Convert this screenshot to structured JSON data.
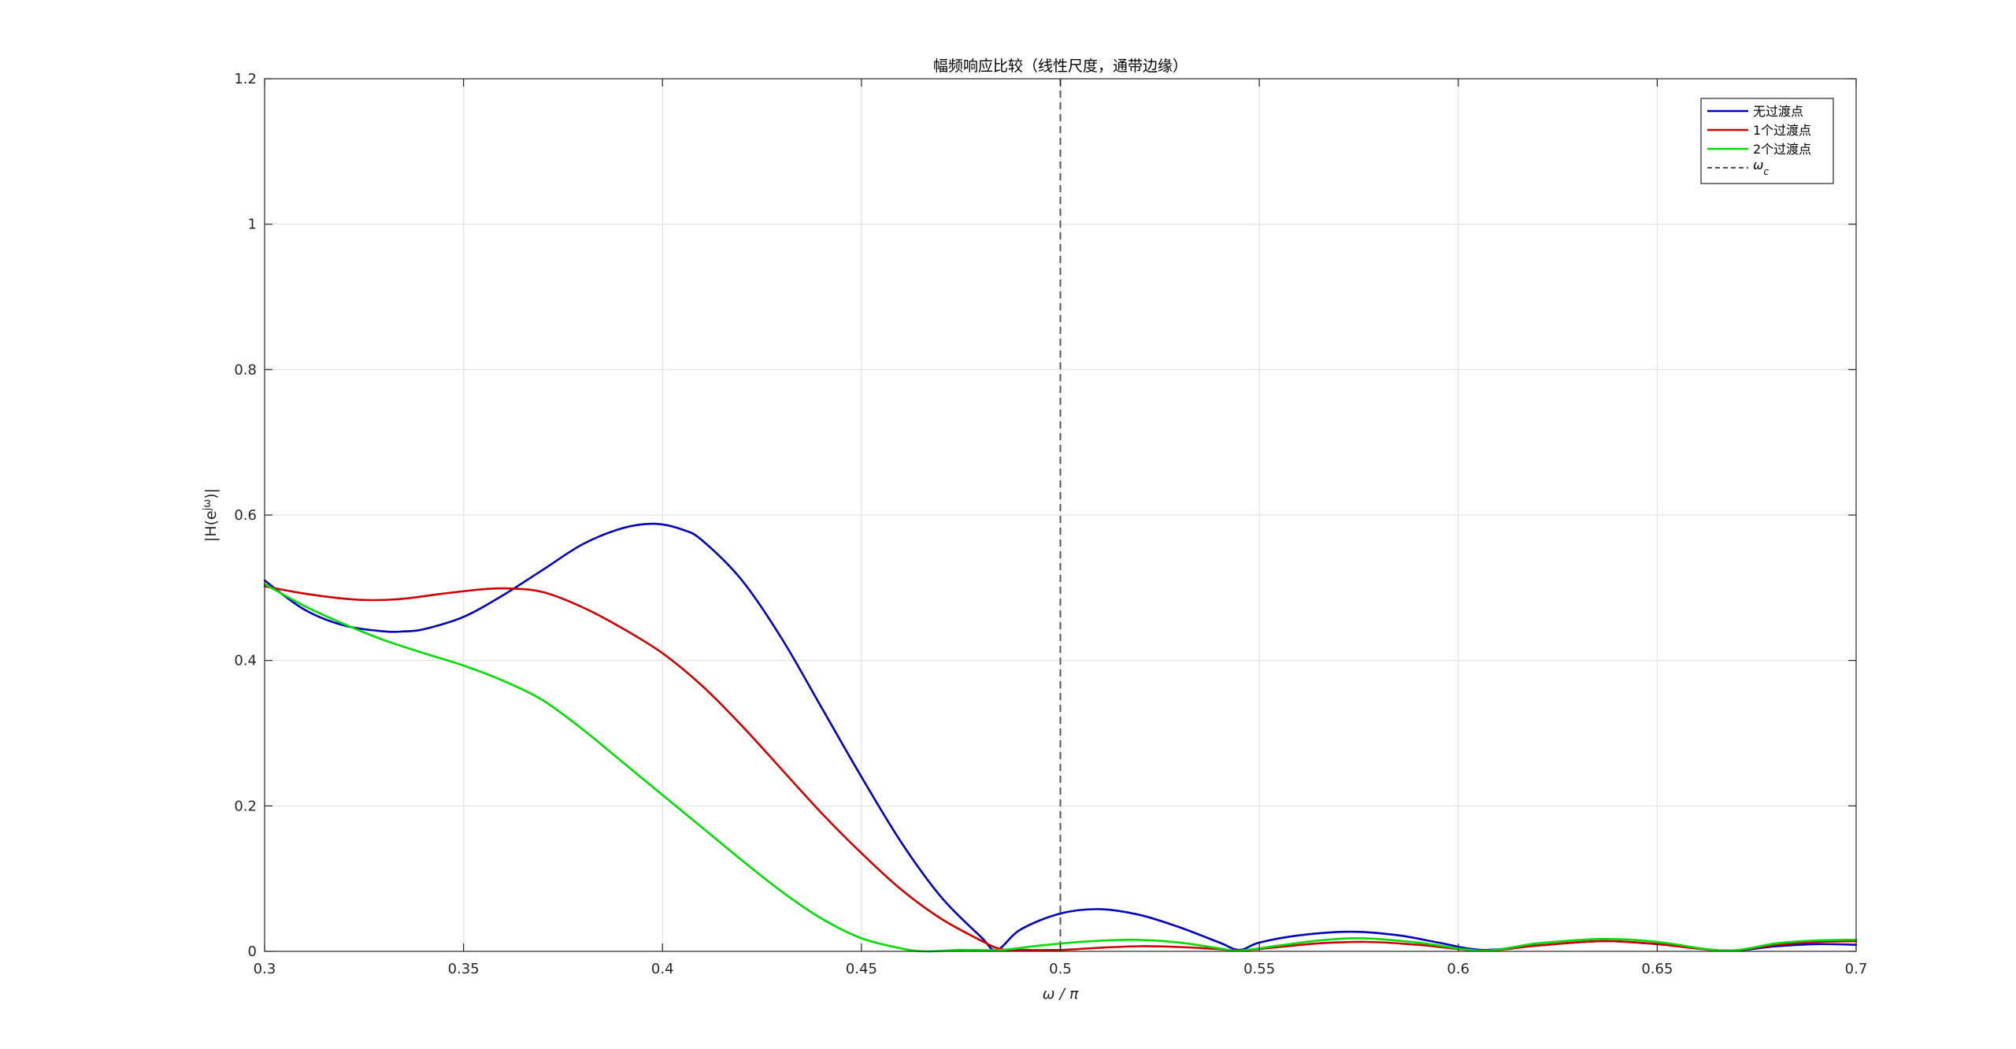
{
  "chart_data": {
    "type": "line",
    "title": "幅频响应比较（线性尺度，通带边缘）",
    "xlabel": "ω / π",
    "ylabel": "|H(e^{jω})|",
    "xlim": [
      0.3,
      0.7
    ],
    "ylim": [
      0,
      1.2
    ],
    "xticks": [
      0.3,
      0.35,
      0.4,
      0.45,
      0.5,
      0.55,
      0.6,
      0.65,
      0.7
    ],
    "xtick_labels": [
      "0.3",
      "0.35",
      "0.4",
      "0.45",
      "0.5",
      "0.55",
      "0.6",
      "0.65",
      "0.7"
    ],
    "yticks": [
      0,
      0.2,
      0.4,
      0.6,
      0.8,
      1,
      1.2
    ],
    "ytick_labels": [
      "0",
      "0.2",
      "0.4",
      "0.6",
      "0.8",
      "1",
      "1.2"
    ],
    "grid": true,
    "legend_position": "top-right",
    "cutoff": {
      "name": "ω_c",
      "x": 0.5,
      "color": "#555555",
      "style": "dashed"
    },
    "series": [
      {
        "name": "无过渡点",
        "color": "#0000bb",
        "x": [
          0.3,
          0.31,
          0.32,
          0.33,
          0.335,
          0.34,
          0.35,
          0.36,
          0.37,
          0.38,
          0.39,
          0.398,
          0.405,
          0.41,
          0.42,
          0.43,
          0.44,
          0.45,
          0.46,
          0.47,
          0.48,
          0.484,
          0.49,
          0.5,
          0.51,
          0.52,
          0.53,
          0.54,
          0.545,
          0.55,
          0.56,
          0.573,
          0.585,
          0.595,
          0.606,
          0.62,
          0.636,
          0.65,
          0.667,
          0.68,
          0.69,
          0.7
        ],
        "y": [
          0.51,
          0.47,
          0.448,
          0.44,
          0.44,
          0.443,
          0.46,
          0.49,
          0.525,
          0.56,
          0.582,
          0.588,
          0.58,
          0.565,
          0.51,
          0.43,
          0.335,
          0.24,
          0.15,
          0.075,
          0.02,
          0.002,
          0.03,
          0.052,
          0.058,
          0.05,
          0.033,
          0.012,
          0.002,
          0.012,
          0.022,
          0.027,
          0.022,
          0.012,
          0.002,
          0.008,
          0.014,
          0.01,
          0.001,
          0.007,
          0.01,
          0.009
        ]
      },
      {
        "name": "1个过渡点",
        "color": "#cc0000",
        "x": [
          0.3,
          0.31,
          0.32,
          0.327,
          0.335,
          0.345,
          0.355,
          0.362,
          0.37,
          0.38,
          0.39,
          0.4,
          0.41,
          0.42,
          0.43,
          0.44,
          0.45,
          0.46,
          0.47,
          0.48,
          0.485,
          0.49,
          0.5,
          0.51,
          0.52,
          0.53,
          0.54,
          0.545,
          0.555,
          0.565,
          0.577,
          0.59,
          0.606,
          0.62,
          0.636,
          0.65,
          0.667,
          0.68,
          0.69,
          0.7
        ],
        "y": [
          0.502,
          0.492,
          0.485,
          0.483,
          0.485,
          0.492,
          0.498,
          0.499,
          0.494,
          0.473,
          0.444,
          0.41,
          0.365,
          0.31,
          0.25,
          0.19,
          0.135,
          0.085,
          0.045,
          0.015,
          0.003,
          0.002,
          0.002,
          0.005,
          0.007,
          0.006,
          0.003,
          0.001,
          0.006,
          0.011,
          0.013,
          0.009,
          0.001,
          0.008,
          0.014,
          0.01,
          0.001,
          0.009,
          0.013,
          0.014
        ]
      },
      {
        "name": "2个过渡点",
        "color": "#00dd00",
        "x": [
          0.3,
          0.31,
          0.32,
          0.33,
          0.34,
          0.35,
          0.36,
          0.37,
          0.38,
          0.39,
          0.4,
          0.41,
          0.42,
          0.43,
          0.44,
          0.45,
          0.46,
          0.466,
          0.475,
          0.485,
          0.495,
          0.505,
          0.518,
          0.53,
          0.54,
          0.545,
          0.555,
          0.565,
          0.576,
          0.59,
          0.606,
          0.62,
          0.636,
          0.65,
          0.667,
          0.68,
          0.69,
          0.7
        ],
        "y": [
          0.505,
          0.475,
          0.45,
          0.428,
          0.41,
          0.393,
          0.372,
          0.345,
          0.305,
          0.26,
          0.215,
          0.17,
          0.125,
          0.082,
          0.045,
          0.018,
          0.004,
          0.0,
          0.002,
          0.002,
          0.008,
          0.013,
          0.016,
          0.012,
          0.004,
          0.001,
          0.008,
          0.015,
          0.018,
          0.012,
          0.001,
          0.011,
          0.017,
          0.013,
          0.001,
          0.011,
          0.015,
          0.016
        ]
      }
    ]
  }
}
